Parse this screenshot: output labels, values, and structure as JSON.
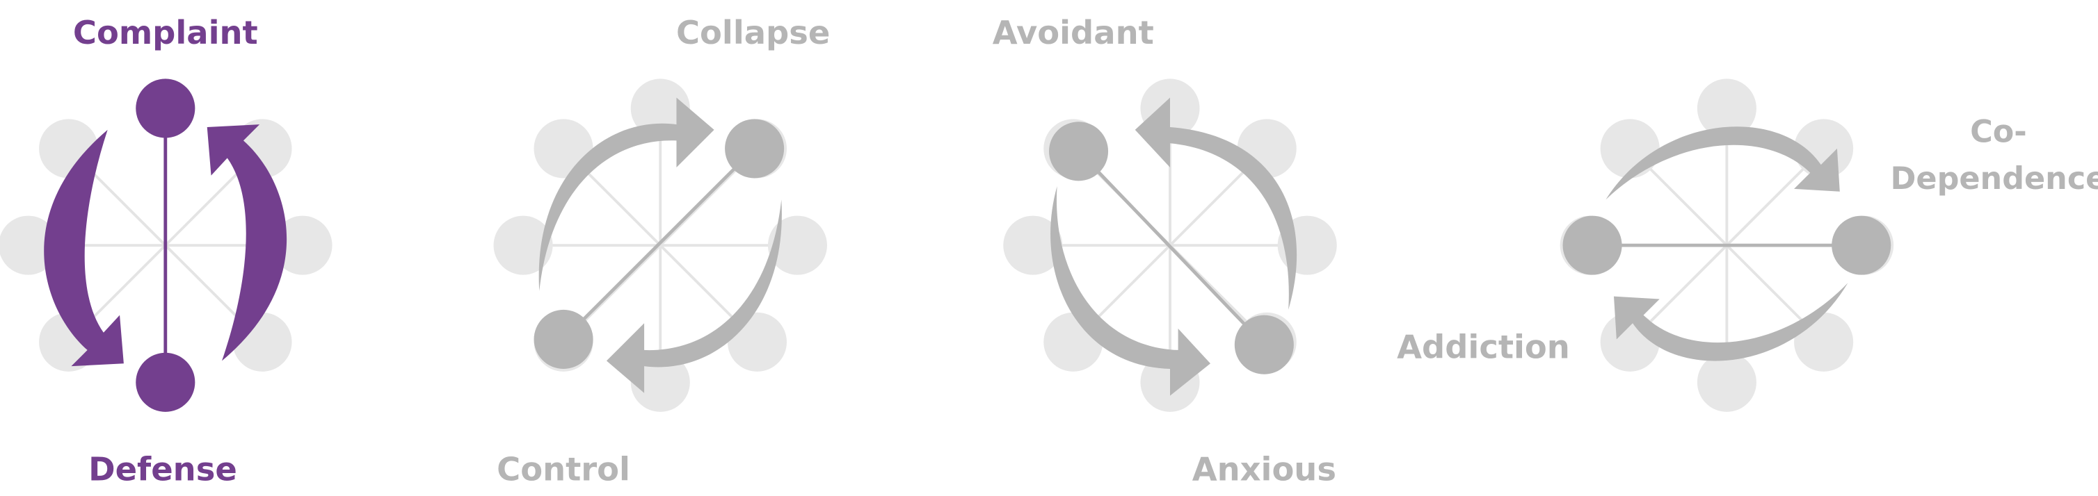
{
  "colors": {
    "accent": "#733f8e",
    "muted": "#b5b5b5",
    "node_faded": "#e7e7e7",
    "spoke": "#e3e3e3"
  },
  "diagrams": [
    {
      "name": "complaint-defense",
      "active": true,
      "labels": {
        "top": "Complaint",
        "bottom": "Defense"
      }
    },
    {
      "name": "collapse-control",
      "active": false,
      "labels": {
        "top": "Collapse",
        "bottom": "Control"
      }
    },
    {
      "name": "avoidant-anxious",
      "active": false,
      "labels": {
        "top": "Avoidant",
        "bottom": "Anxious"
      }
    },
    {
      "name": "codependence-addiction",
      "active": false,
      "labels": {
        "right_line1": "Co-",
        "right_line2": "Dependence",
        "left": "Addiction"
      }
    }
  ]
}
